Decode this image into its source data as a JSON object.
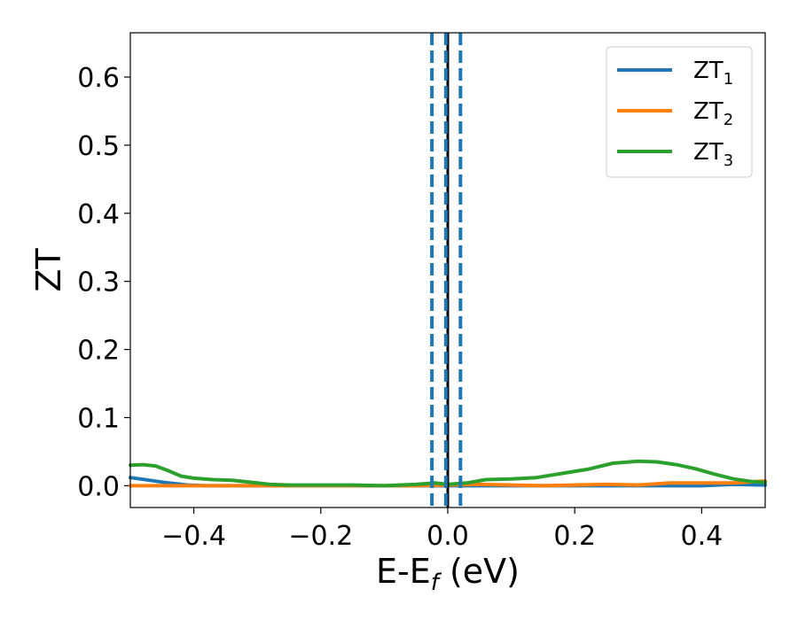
{
  "chart_data": {
    "type": "line",
    "title": "",
    "xlabel": {
      "main": "E-E",
      "sub": "f",
      "suffix": " (eV)"
    },
    "ylabel": "ZT",
    "xlim": [
      -0.5,
      0.5
    ],
    "ylim": [
      -0.032,
      0.665
    ],
    "xticks": [
      -0.4,
      -0.2,
      0.0,
      0.2,
      0.4
    ],
    "xtick_labels": [
      "−0.4",
      "−0.2",
      "0.0",
      "0.2",
      "0.4"
    ],
    "yticks": [
      0.0,
      0.1,
      0.2,
      0.3,
      0.4,
      0.5,
      0.6
    ],
    "ytick_labels": [
      "0.0",
      "0.1",
      "0.2",
      "0.3",
      "0.4",
      "0.5",
      "0.6"
    ],
    "grid": false,
    "legend_position": "top-right",
    "vlines": [
      {
        "x": 0.0,
        "color": "#000000",
        "style": "solid"
      },
      {
        "x": -0.025,
        "color": "#1f77b4",
        "style": "dashed"
      },
      {
        "x": -0.003,
        "color": "#1f77b4",
        "style": "dashed"
      },
      {
        "x": 0.02,
        "color": "#1f77b4",
        "style": "dashed"
      }
    ],
    "series": [
      {
        "name": "ZT",
        "subscript": "1",
        "color": "#1f77b4",
        "x": [
          -0.5,
          -0.47,
          -0.44,
          -0.41,
          -0.38,
          -0.35,
          -0.32,
          -0.29,
          -0.26,
          -0.23,
          -0.2,
          -0.15,
          -0.1,
          -0.05,
          0.0,
          0.05,
          0.1,
          0.15,
          0.2,
          0.25,
          0.3,
          0.35,
          0.4,
          0.45,
          0.5
        ],
        "values": [
          0.012,
          0.008,
          0.004,
          0.001,
          0.0,
          0.0,
          0.0,
          0.0,
          0.0,
          0.0,
          0.0,
          0.0,
          0.0,
          0.0,
          0.0,
          0.0,
          0.0,
          0.0,
          0.0,
          0.0,
          0.0,
          0.0,
          0.0,
          0.002,
          0.001
        ]
      },
      {
        "name": "ZT",
        "subscript": "2",
        "color": "#ff7f0e",
        "x": [
          -0.5,
          -0.45,
          -0.4,
          -0.3,
          -0.2,
          -0.1,
          -0.05,
          0.0,
          0.05,
          0.1,
          0.15,
          0.2,
          0.25,
          0.3,
          0.35,
          0.4,
          0.45,
          0.5
        ],
        "values": [
          0.0,
          0.0,
          0.0,
          0.0,
          0.0,
          0.0,
          0.0,
          0.001,
          0.002,
          0.001,
          0.0,
          0.001,
          0.002,
          0.001,
          0.004,
          0.004,
          0.004,
          0.007
        ]
      },
      {
        "name": "ZT",
        "subscript": "3",
        "color": "#2ca02c",
        "x": [
          -0.5,
          -0.48,
          -0.46,
          -0.44,
          -0.42,
          -0.4,
          -0.37,
          -0.34,
          -0.31,
          -0.28,
          -0.25,
          -0.2,
          -0.15,
          -0.1,
          -0.05,
          -0.02,
          0.0,
          0.03,
          0.06,
          0.1,
          0.14,
          0.18,
          0.22,
          0.26,
          0.3,
          0.33,
          0.36,
          0.39,
          0.42,
          0.45,
          0.48,
          0.5
        ],
        "values": [
          0.03,
          0.031,
          0.029,
          0.022,
          0.014,
          0.011,
          0.009,
          0.008,
          0.005,
          0.002,
          0.001,
          0.001,
          0.001,
          0.0,
          0.002,
          0.004,
          0.002,
          0.004,
          0.009,
          0.01,
          0.012,
          0.018,
          0.024,
          0.033,
          0.036,
          0.035,
          0.031,
          0.025,
          0.017,
          0.01,
          0.006,
          0.005
        ]
      }
    ]
  }
}
